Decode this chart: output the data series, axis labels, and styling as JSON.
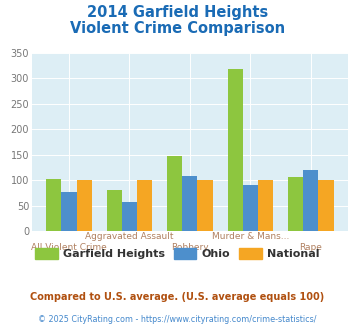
{
  "title_line1": "2014 Garfield Heights",
  "title_line2": "Violent Crime Comparison",
  "categories": [
    "All Violent Crime",
    "Aggravated Assault",
    "Robbery",
    "Murder & Mans...",
    "Rape"
  ],
  "cat_labels_top": [
    "",
    "Aggravated Assault",
    "",
    "Murder & Mans...",
    ""
  ],
  "cat_labels_bottom": [
    "All Violent Crime",
    "",
    "Robbery",
    "",
    "Rape"
  ],
  "garfield": [
    103,
    80,
    147,
    318,
    107
  ],
  "ohio": [
    76,
    56,
    108,
    90,
    119
  ],
  "national": [
    100,
    100,
    100,
    100,
    100
  ],
  "garfield_color": "#8dc63f",
  "ohio_color": "#4d8fcc",
  "national_color": "#f5a623",
  "ylim": [
    0,
    350
  ],
  "yticks": [
    0,
    50,
    100,
    150,
    200,
    250,
    300,
    350
  ],
  "plot_bg": "#ddeef5",
  "title_color": "#1a6bb5",
  "xlabel_color": "#b08060",
  "ylabel_color": "#777777",
  "footnote1": "Compared to U.S. average. (U.S. average equals 100)",
  "footnote2": "© 2025 CityRating.com - https://www.cityrating.com/crime-statistics/",
  "footnote1_color": "#b05010",
  "footnote2_color": "#4488cc",
  "legend_labels": [
    "Garfield Heights",
    "Ohio",
    "National"
  ],
  "legend_text_color": "#333333",
  "bar_width": 0.25
}
